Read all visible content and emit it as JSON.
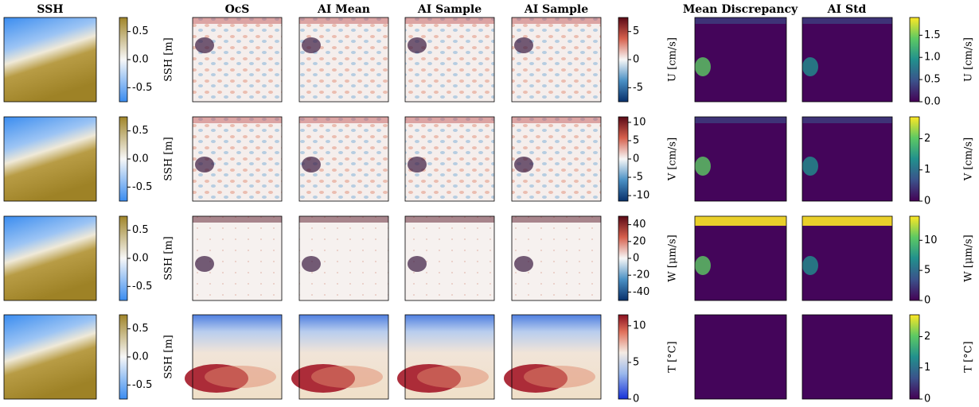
{
  "columns": [
    "SSH",
    "OcS",
    "AI Mean",
    "AI Sample",
    "AI Sample",
    "Mean Discrepancy",
    "AI Std"
  ],
  "rows": [
    {
      "ssh_colorbar": {
        "label": "SSH [m]",
        "lim": [
          -0.75,
          0.75
        ],
        "ticks": [
          -0.5,
          {
            "value": 0,
            "label": "0.0"
          },
          0.5
        ]
      },
      "field_colorbar": {
        "label": "U [cm/s]",
        "lim": [
          -7.5,
          7.5
        ],
        "ticks": [
          -5,
          0,
          5
        ]
      },
      "std_colorbar": {
        "label": "U [cm/s]",
        "lim": [
          0,
          1.9
        ],
        "ticks": [
          {
            "value": 0,
            "label": "0.0"
          },
          0.5,
          {
            "value": 1,
            "label": "1.0"
          },
          1.5
        ]
      }
    },
    {
      "ssh_colorbar": {
        "label": "SSH [m]",
        "lim": [
          -0.75,
          0.75
        ],
        "ticks": [
          -0.5,
          {
            "value": 0,
            "label": "0.0"
          },
          0.5
        ]
      },
      "field_colorbar": {
        "label": "V [cm/s]",
        "lim": [
          -11.5,
          11.5
        ],
        "ticks": [
          -10,
          -5,
          0,
          5,
          10
        ]
      },
      "std_colorbar": {
        "label": "V [cm/s]",
        "lim": [
          0,
          2.7
        ],
        "ticks": [
          0,
          1,
          2
        ]
      }
    },
    {
      "ssh_colorbar": {
        "label": "SSH [m]",
        "lim": [
          -0.75,
          0.75
        ],
        "ticks": [
          -0.5,
          {
            "value": 0,
            "label": "0.0"
          },
          0.5
        ]
      },
      "field_colorbar": {
        "label": "W [μm/s]",
        "lim": [
          -50,
          50
        ],
        "ticks": [
          -40,
          -20,
          0,
          20,
          40
        ]
      },
      "std_colorbar": {
        "label": "W [μm/s]",
        "lim": [
          0,
          14
        ],
        "ticks": [
          0,
          5,
          10
        ]
      }
    },
    {
      "ssh_colorbar": {
        "label": "SSH [m]",
        "lim": [
          -0.75,
          0.75
        ],
        "ticks": [
          -0.5,
          {
            "value": 0,
            "label": "0.0"
          },
          0.5
        ]
      },
      "field_colorbar": {
        "label": "T [°C]",
        "lim": [
          0,
          11.5
        ],
        "ticks": [
          0,
          5,
          10
        ]
      },
      "std_colorbar": {
        "label": "T [°C]",
        "lim": [
          0,
          2.7
        ],
        "ticks": [
          0,
          1,
          2
        ]
      }
    }
  ]
}
